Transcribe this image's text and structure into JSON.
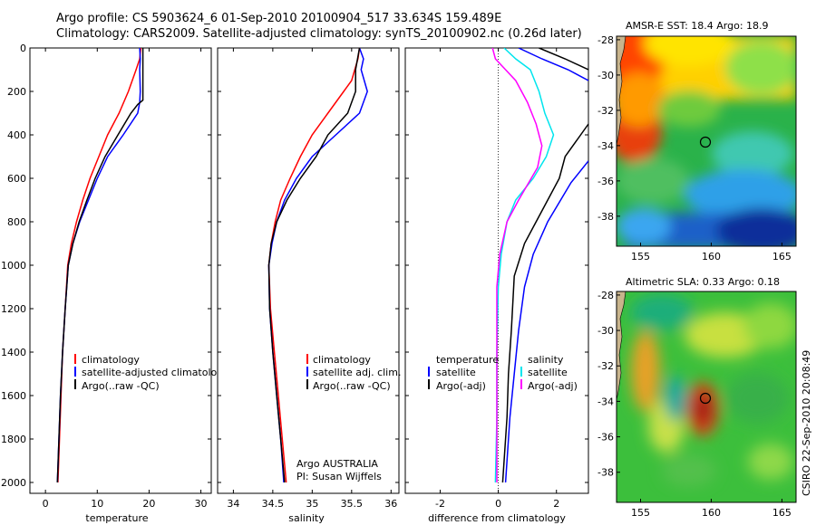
{
  "header": {
    "line1": "Argo profile: CS 5903624_6 01-Sep-2010 20100904_517 33.634S 159.489E",
    "line2": "Climatology: CARS2009. Satellite-adjusted climatology: synTS_20100902.nc (0.26d later)"
  },
  "footer": {
    "argo_label": "Argo AUSTRALIA",
    "pi_label": "PI: Susan Wijffels",
    "side_label": "CSIRO 22-Sep-2010 20:08:49"
  },
  "colors": {
    "climatology": "#ff0000",
    "satellite": "#0000ff",
    "argo": "#000000",
    "satellite_salinity": "#00e5ee",
    "argo_salinity": "#ff00ff"
  },
  "chart_data": [
    {
      "type": "line",
      "panel": "temperature",
      "xlabel": "temperature",
      "ylabel": "",
      "xlim": [
        -3,
        32
      ],
      "ylim": [
        2050,
        0
      ],
      "xticks": [
        0,
        10,
        20,
        30
      ],
      "yticks": [
        0,
        200,
        400,
        600,
        800,
        1000,
        1200,
        1400,
        1600,
        1800,
        2000
      ],
      "legend": {
        "placement": "bottom-right",
        "entries": [
          "climatology",
          "satellite-adjusted climatology",
          "Argo(..raw -QC)"
        ]
      },
      "series": [
        {
          "name": "climatology",
          "color": "climatology",
          "points": [
            [
              18.4,
              0
            ],
            [
              18.2,
              50
            ],
            [
              17.5,
              100
            ],
            [
              16,
              200
            ],
            [
              14.2,
              300
            ],
            [
              12,
              400
            ],
            [
              10.3,
              500
            ],
            [
              8.6,
              600
            ],
            [
              7.2,
              700
            ],
            [
              6,
              800
            ],
            [
              5,
              900
            ],
            [
              4.3,
              1000
            ],
            [
              3.8,
              1200
            ],
            [
              3.3,
              1400
            ],
            [
              3,
              1600
            ],
            [
              2.7,
              1800
            ],
            [
              2.4,
              2000
            ]
          ]
        },
        {
          "name": "satellite-adjusted climatology",
          "color": "satellite",
          "points": [
            [
              18.2,
              0
            ],
            [
              18.3,
              50
            ],
            [
              18.2,
              100
            ],
            [
              18.3,
              200
            ],
            [
              18.2,
              250
            ],
            [
              17.8,
              300
            ],
            [
              15,
              400
            ],
            [
              12,
              500
            ],
            [
              10,
              600
            ],
            [
              8.3,
              700
            ],
            [
              6.6,
              800
            ],
            [
              5.3,
              900
            ],
            [
              4.4,
              1000
            ],
            [
              3.8,
              1200
            ],
            [
              3.3,
              1400
            ],
            [
              2.9,
              1600
            ],
            [
              2.6,
              1800
            ],
            [
              2.3,
              2000
            ]
          ]
        },
        {
          "name": "Argo(..raw -QC)",
          "color": "argo",
          "points": [
            [
              18.8,
              0
            ],
            [
              18.8,
              100
            ],
            [
              18.8,
              200
            ],
            [
              18.8,
              240
            ],
            [
              17.8,
              260
            ],
            [
              16.5,
              300
            ],
            [
              14,
              400
            ],
            [
              11.5,
              500
            ],
            [
              9.6,
              600
            ],
            [
              8,
              700
            ],
            [
              6.5,
              800
            ],
            [
              5.3,
              900
            ],
            [
              4.4,
              1000
            ],
            [
              3.8,
              1200
            ],
            [
              3.3,
              1400
            ],
            [
              2.9,
              1600
            ],
            [
              2.6,
              1800
            ],
            [
              2.3,
              2000
            ]
          ]
        }
      ]
    },
    {
      "type": "line",
      "panel": "salinity",
      "xlabel": "salinity",
      "ylabel": "",
      "xlim": [
        33.8,
        36.1
      ],
      "ylim": [
        2050,
        0
      ],
      "xticks": [
        34,
        34.5,
        35,
        35.5,
        36
      ],
      "yticks": [],
      "legend": {
        "placement": "bottom-right",
        "entries": [
          "climatology",
          "satellite adj. clim.",
          "Argo(..raw -QC)"
        ]
      },
      "series": [
        {
          "name": "climatology",
          "color": "climatology",
          "points": [
            [
              35.6,
              0
            ],
            [
              35.58,
              50
            ],
            [
              35.5,
              150
            ],
            [
              35.4,
              200
            ],
            [
              35.2,
              300
            ],
            [
              35,
              400
            ],
            [
              34.85,
              500
            ],
            [
              34.72,
              600
            ],
            [
              34.6,
              700
            ],
            [
              34.53,
              800
            ],
            [
              34.48,
              900
            ],
            [
              34.45,
              1000
            ],
            [
              34.47,
              1200
            ],
            [
              34.52,
              1400
            ],
            [
              34.57,
              1600
            ],
            [
              34.62,
              1800
            ],
            [
              34.67,
              2000
            ]
          ]
        },
        {
          "name": "satellite adj. clim.",
          "color": "satellite",
          "points": [
            [
              35.6,
              0
            ],
            [
              35.65,
              50
            ],
            [
              35.62,
              100
            ],
            [
              35.7,
              200
            ],
            [
              35.6,
              300
            ],
            [
              35.3,
              400
            ],
            [
              35,
              500
            ],
            [
              34.8,
              600
            ],
            [
              34.65,
              700
            ],
            [
              34.55,
              800
            ],
            [
              34.49,
              900
            ],
            [
              34.45,
              1000
            ],
            [
              34.46,
              1200
            ],
            [
              34.5,
              1400
            ],
            [
              34.55,
              1600
            ],
            [
              34.6,
              1800
            ],
            [
              34.64,
              2000
            ]
          ]
        },
        {
          "name": "Argo(..raw -QC)",
          "color": "argo",
          "points": [
            [
              35.6,
              0
            ],
            [
              35.55,
              100
            ],
            [
              35.55,
              200
            ],
            [
              35.45,
              300
            ],
            [
              35.2,
              400
            ],
            [
              35.05,
              500
            ],
            [
              34.85,
              600
            ],
            [
              34.68,
              700
            ],
            [
              34.55,
              800
            ],
            [
              34.48,
              900
            ],
            [
              34.45,
              1000
            ],
            [
              34.46,
              1200
            ],
            [
              34.5,
              1400
            ],
            [
              34.55,
              1600
            ],
            [
              34.6,
              1800
            ],
            [
              34.65,
              2000
            ]
          ]
        }
      ]
    },
    {
      "type": "line",
      "panel": "difference",
      "xlabel": "difference from climatology",
      "ylabel": "",
      "xlim": [
        -3.2,
        3.1
      ],
      "ylim": [
        2050,
        0
      ],
      "xticks": [
        -2,
        0,
        2
      ],
      "yticks": [],
      "zero_line": true,
      "legend": {
        "placement": "bottom-right",
        "groups": [
          {
            "title": "temperature",
            "entries": [
              "satellite",
              "Argo(-adj)"
            ]
          },
          {
            "title": "salinity",
            "entries": [
              "satellite",
              "Argo(-adj)"
            ]
          }
        ]
      },
      "series": [
        {
          "name": "temperature satellite",
          "color": "satellite",
          "points": [
            [
              0.7,
              0
            ],
            [
              1.5,
              50
            ],
            [
              2.4,
              100
            ],
            [
              3.1,
              150
            ]
          ]
        },
        {
          "name": "temperature Argo(-adj)",
          "color": "argo",
          "points": [
            [
              1.4,
              0
            ],
            [
              2.3,
              50
            ],
            [
              3.1,
              100
            ]
          ]
        },
        {
          "name": "temperature satellite (deep)",
          "color": "satellite",
          "points": [
            [
              3.1,
              520
            ],
            [
              2.5,
              620
            ],
            [
              1.7,
              800
            ],
            [
              1.2,
              950
            ],
            [
              0.9,
              1100
            ],
            [
              0.7,
              1300
            ],
            [
              0.55,
              1500
            ],
            [
              0.4,
              1700
            ],
            [
              0.3,
              1900
            ],
            [
              0.25,
              2000
            ]
          ]
        },
        {
          "name": "temperature Argo(-adj) (deep)",
          "color": "argo",
          "points": [
            [
              3.1,
              350
            ],
            [
              2.3,
              500
            ],
            [
              2.1,
              600
            ],
            [
              1.5,
              750
            ],
            [
              0.9,
              900
            ],
            [
              0.55,
              1050
            ],
            [
              0.45,
              1300
            ],
            [
              0.35,
              1500
            ],
            [
              0.3,
              1700
            ],
            [
              0.2,
              1900
            ],
            [
              0.15,
              2000
            ]
          ]
        },
        {
          "name": "salinity satellite",
          "color": "satellite_salinity",
          "points": [
            [
              0.2,
              0
            ],
            [
              0.6,
              50
            ],
            [
              1.1,
              100
            ],
            [
              1.4,
              200
            ],
            [
              1.6,
              300
            ],
            [
              1.9,
              400
            ],
            [
              1.65,
              500
            ],
            [
              1.2,
              600
            ],
            [
              0.6,
              700
            ],
            [
              0.3,
              800
            ],
            [
              0.1,
              950
            ],
            [
              0,
              1100
            ],
            [
              -0.05,
              1400
            ],
            [
              -0.05,
              1700
            ],
            [
              -0.1,
              2000
            ]
          ]
        },
        {
          "name": "salinity Argo(-adj)",
          "color": "argo_salinity",
          "points": [
            [
              -0.2,
              0
            ],
            [
              -0.1,
              50
            ],
            [
              0.6,
              150
            ],
            [
              1,
              250
            ],
            [
              1.3,
              350
            ],
            [
              1.5,
              450
            ],
            [
              1.35,
              550
            ],
            [
              0.7,
              700
            ],
            [
              0.3,
              800
            ],
            [
              0.05,
              950
            ],
            [
              -0.05,
              1100
            ],
            [
              -0.05,
              1400
            ],
            [
              -0.05,
              1700
            ],
            [
              -0.05,
              2000
            ]
          ]
        }
      ]
    },
    {
      "type": "heatmap",
      "panel": "sst",
      "title": "AMSR-E SST: 18.4 Argo: 18.9",
      "xticks": [
        155,
        160,
        165
      ],
      "yticks": [
        -28,
        -30,
        -32,
        -34,
        -36,
        -38
      ],
      "xlim": [
        153.3,
        166
      ],
      "ylim": [
        -39.7,
        -27.8
      ],
      "marker": [
        159.489,
        -33.634
      ]
    },
    {
      "type": "heatmap",
      "panel": "sla",
      "title": "Altimetric SLA: 0.33 Argo: 0.18",
      "xticks": [
        155,
        160,
        165
      ],
      "yticks": [
        -28,
        -30,
        -32,
        -34,
        -36,
        -38
      ],
      "xlim": [
        153.3,
        166
      ],
      "ylim": [
        -39.7,
        -27.8
      ],
      "marker": [
        159.489,
        -33.634
      ]
    }
  ]
}
